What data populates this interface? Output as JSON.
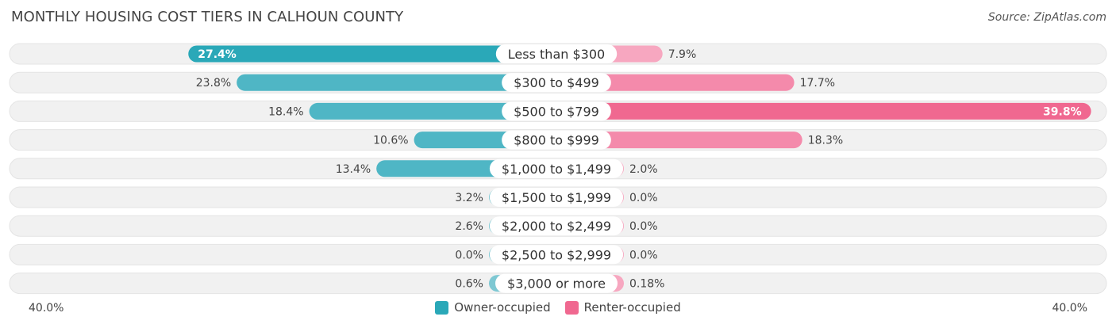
{
  "header": {
    "title": "MONTHLY HOUSING COST TIERS IN CALHOUN COUNTY",
    "source": "Source: ZipAtlas.com"
  },
  "colors": {
    "owner_dark": "#2aa8b8",
    "owner_light": "#7ec8d3",
    "renter_dark": "#f06890",
    "renter_light": "#f7a7c0",
    "row_bg": "#f1f1f1"
  },
  "chart_data": {
    "type": "bar",
    "orientation": "horizontal-diverging",
    "categories": [
      "Less than $300",
      "$300 to $499",
      "$500 to $799",
      "$800 to $999",
      "$1,000 to $1,499",
      "$1,500 to $1,999",
      "$2,000 to $2,499",
      "$2,500 to $2,999",
      "$3,000 or more"
    ],
    "series": [
      {
        "name": "Owner-occupied",
        "values": [
          27.4,
          23.8,
          18.4,
          10.6,
          13.4,
          3.2,
          2.6,
          0.0,
          0.6
        ],
        "labels": [
          "27.4%",
          "23.8%",
          "18.4%",
          "10.6%",
          "13.4%",
          "3.2%",
          "2.6%",
          "0.0%",
          "0.6%"
        ]
      },
      {
        "name": "Renter-occupied",
        "values": [
          7.9,
          17.7,
          39.8,
          18.3,
          2.0,
          0.0,
          0.0,
          0.0,
          0.18
        ],
        "labels": [
          "7.9%",
          "17.7%",
          "39.8%",
          "18.3%",
          "2.0%",
          "0.0%",
          "0.0%",
          "0.0%",
          "0.18%"
        ]
      }
    ],
    "xlim": [
      -40,
      40
    ],
    "axis_left_label": "40.0%",
    "axis_right_label": "40.0%",
    "legend_position": "bottom-center"
  }
}
